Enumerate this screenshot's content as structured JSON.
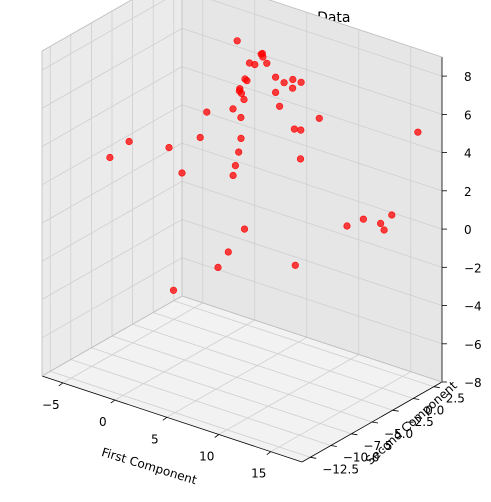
{
  "chart_data": {
    "type": "scatter",
    "title": "3D Projection of Leukemia Data",
    "xlabel": "First Component",
    "ylabel": "Second Component",
    "zlabel": "",
    "x_ticks": [
      "−5",
      "0",
      "5",
      "10",
      "15"
    ],
    "y_ticks": [
      "−12.5",
      "−10.0",
      "−7.5",
      "−5.0",
      "−2.5",
      "0.0",
      "2.5"
    ],
    "z_ticks": [
      "−8",
      "−6",
      "−4",
      "−2",
      "0",
      "2",
      "4",
      "6",
      "8"
    ],
    "xlim": [
      -7,
      18
    ],
    "ylim": [
      -13.5,
      3.5
    ],
    "zlim": [
      -8,
      9
    ],
    "grid": true,
    "marker_color": "#ff0000",
    "pane_color": "#f2f2f2",
    "points": [
      {
        "x": -6.9,
        "y": 1.8,
        "z": 0.2
      },
      {
        "x": -3.9,
        "y": 2.6,
        "z": 2.4
      },
      {
        "x": -3.2,
        "y": -1.3,
        "z": 0.3
      },
      {
        "x": -2.0,
        "y": -0.6,
        "z": 2.2
      },
      {
        "x": -1.3,
        "y": 3.0,
        "z": 6.5
      },
      {
        "x": -1.5,
        "y": -12.2,
        "z": 4.1
      },
      {
        "x": -0.6,
        "y": -11.0,
        "z": 4.8
      },
      {
        "x": -1.4,
        "y": -4.6,
        "z": -4.7
      },
      {
        "x": 0.5,
        "y": -1.6,
        "z": -3.9
      },
      {
        "x": 0.3,
        "y": -0.1,
        "z": -3.5
      },
      {
        "x": 1.7,
        "y": 0.1,
        "z": -2.1
      },
      {
        "x": -0.2,
        "y": 1.1,
        "z": 3.6
      },
      {
        "x": 0.1,
        "y": 1.5,
        "z": 4.5
      },
      {
        "x": 0.4,
        "y": 1.8,
        "z": 5.1
      },
      {
        "x": 0.6,
        "y": 2.1,
        "z": 5.9
      },
      {
        "x": 0.3,
        "y": 1.3,
        "z": 4.7
      },
      {
        "x": 0.7,
        "y": 1.0,
        "z": 4.6
      },
      {
        "x": 0.9,
        "y": 1.4,
        "z": 5.2
      },
      {
        "x": 1.1,
        "y": 0.8,
        "z": 4.4
      },
      {
        "x": 1.5,
        "y": 1.6,
        "z": 6.1
      },
      {
        "x": 1.8,
        "y": 2.0,
        "z": 6.6
      },
      {
        "x": 2.0,
        "y": 1.9,
        "z": 6.7
      },
      {
        "x": 2.2,
        "y": 1.7,
        "z": 6.6
      },
      {
        "x": 2.5,
        "y": 1.8,
        "z": 6.3
      },
      {
        "x": 1.2,
        "y": 0.3,
        "z": 3.6
      },
      {
        "x": 1.6,
        "y": -0.2,
        "z": 2.7
      },
      {
        "x": 1.7,
        "y": -0.6,
        "z": 2.1
      },
      {
        "x": 1.3,
        "y": -0.5,
        "z": 1.3
      },
      {
        "x": 1.4,
        "y": -0.9,
        "z": 0.9
      },
      {
        "x": 3.5,
        "y": 1.6,
        "z": 5.8
      },
      {
        "x": 3.9,
        "y": 1.1,
        "z": 5.2
      },
      {
        "x": 4.4,
        "y": 1.5,
        "z": 5.7
      },
      {
        "x": 5.0,
        "y": 1.8,
        "z": 5.9
      },
      {
        "x": 5.3,
        "y": 1.4,
        "z": 5.6
      },
      {
        "x": 5.8,
        "y": 1.8,
        "z": 5.9
      },
      {
        "x": 4.6,
        "y": 0.7,
        "z": 4.7
      },
      {
        "x": 6.1,
        "y": 0.6,
        "z": 3.8
      },
      {
        "x": 6.8,
        "y": 0.5,
        "z": 3.9
      },
      {
        "x": 7.4,
        "y": -0.3,
        "z": 2.7
      },
      {
        "x": 8.5,
        "y": 0.6,
        "z": 4.8
      },
      {
        "x": 12.9,
        "y": -1.6,
        "z": 0.5
      },
      {
        "x": 14.4,
        "y": -1.5,
        "z": 1.1
      },
      {
        "x": 15.9,
        "y": -1.3,
        "z": 1.1
      },
      {
        "x": 16.0,
        "y": -1.0,
        "z": 0.7
      },
      {
        "x": 16.5,
        "y": -0.7,
        "z": 1.5
      },
      {
        "x": 16.4,
        "y": 2.6,
        "z": 5.0
      },
      {
        "x": 16.8,
        "y": -12.8,
        "z": 1.9
      }
    ]
  }
}
